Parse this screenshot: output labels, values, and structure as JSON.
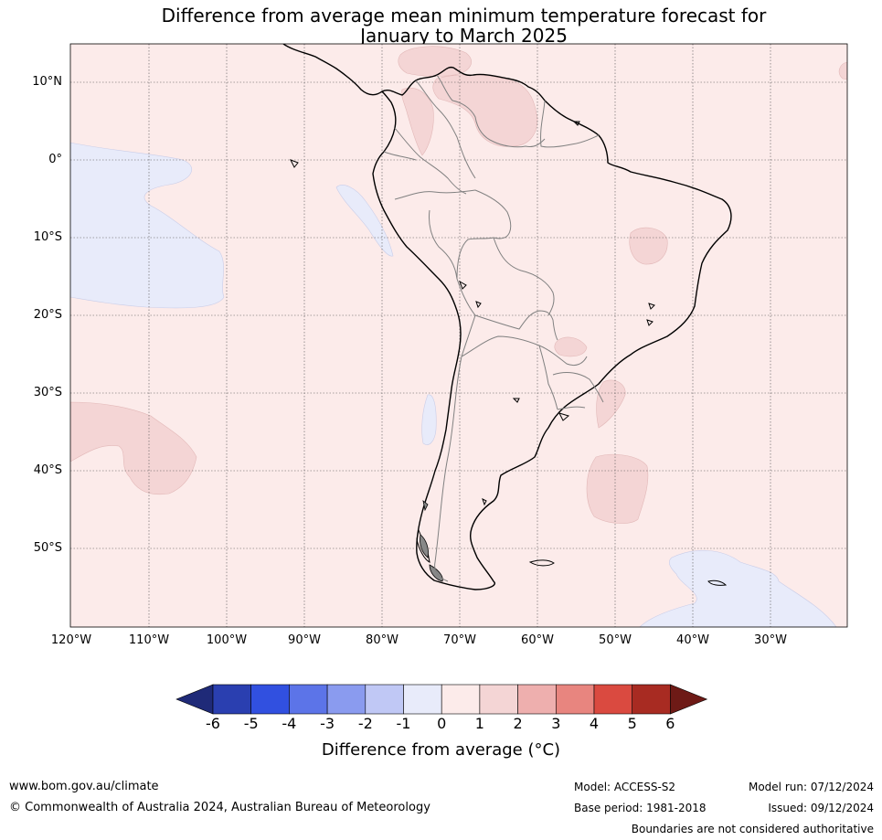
{
  "title": {
    "line1": "Difference from average mean minimum temperature forecast for",
    "line2": "January to March 2025"
  },
  "map": {
    "lat_labels": [
      "10°N",
      "0°",
      "10°S",
      "20°S",
      "30°S",
      "40°S",
      "50°S"
    ],
    "lon_labels": [
      "120°W",
      "110°W",
      "100°W",
      "90°W",
      "80°W",
      "70°W",
      "60°W",
      "50°W",
      "40°W",
      "30°W"
    ],
    "background_color": "#fcebea",
    "warm1_color": "#f4d5d5",
    "cool1_color": "#e8ebfa",
    "coast_color": "#000000",
    "border_color": "#808080"
  },
  "colorbar": {
    "ticks": [
      "-6",
      "-5",
      "-4",
      "-3",
      "-2",
      "-1",
      "0",
      "1",
      "2",
      "3",
      "4",
      "5",
      "6"
    ],
    "colors": [
      "#1f2a78",
      "#2a3fb0",
      "#3150e0",
      "#5c74e8",
      "#8a9bef",
      "#c0c8f5",
      "#e8ebfa",
      "#fcebea",
      "#f4d5d5",
      "#eeafae",
      "#e8857f",
      "#da4a40",
      "#a82b22",
      "#6e1a16"
    ],
    "label": "Difference from average (°C)"
  },
  "footer": {
    "website": "www.bom.gov.au/climate",
    "copyright": "© Commonwealth of Australia 2024, Australian Bureau of Meteorology",
    "model": "Model: ACCESS-S2",
    "base_period": "Base period: 1981-2018",
    "model_run": "Model run: 07/12/2024",
    "issued": "Issued: 09/12/2024",
    "disclaimer": "Boundaries are not considered authoritative"
  }
}
